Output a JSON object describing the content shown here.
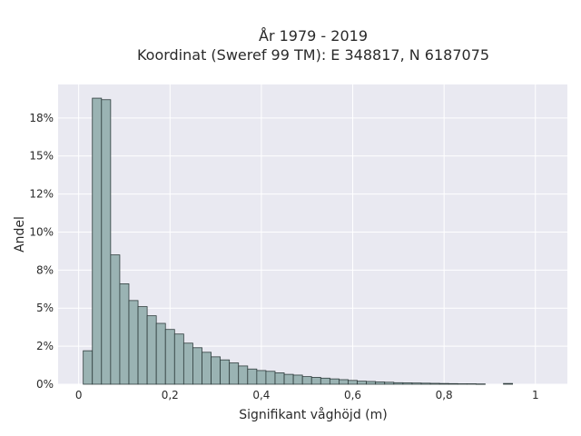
{
  "chart_data": {
    "type": "bar",
    "title_line1": "År 1979 - 2019",
    "title_line2": "Koordinat (Sweref 99 TM): E 348817, N 6187075",
    "xlabel": "Signifikant våghöjd (m)",
    "ylabel": "Andel",
    "xlim": [
      -0.045,
      1.07
    ],
    "ylim": [
      0,
      0.197
    ],
    "x_ticks": [
      {
        "value": 0,
        "label": "0"
      },
      {
        "value": 0.2,
        "label": "0,2"
      },
      {
        "value": 0.4,
        "label": "0,4"
      },
      {
        "value": 0.6,
        "label": "0,6"
      },
      {
        "value": 0.8,
        "label": "0,8"
      },
      {
        "value": 1.0,
        "label": "1"
      }
    ],
    "y_ticks": [
      {
        "value": 0,
        "label": "0%"
      },
      {
        "value": 0.025,
        "label": "2%"
      },
      {
        "value": 0.05,
        "label": "5%"
      },
      {
        "value": 0.075,
        "label": "8%"
      },
      {
        "value": 0.1,
        "label": "10%"
      },
      {
        "value": 0.125,
        "label": "12%"
      },
      {
        "value": 0.15,
        "label": "15%"
      },
      {
        "value": 0.175,
        "label": "18%"
      }
    ],
    "bin_width": 0.02,
    "bins_start": [
      0.01,
      0.03,
      0.05,
      0.07,
      0.09,
      0.11,
      0.13,
      0.15,
      0.17,
      0.19,
      0.21,
      0.23,
      0.25,
      0.27,
      0.29,
      0.31,
      0.33,
      0.35,
      0.37,
      0.39,
      0.41,
      0.43,
      0.45,
      0.47,
      0.49,
      0.51,
      0.53,
      0.55,
      0.57,
      0.59,
      0.61,
      0.63,
      0.65,
      0.67,
      0.69,
      0.71,
      0.73,
      0.75,
      0.77,
      0.79,
      0.81,
      0.83,
      0.85,
      0.87,
      0.89,
      0.91,
      0.93,
      0.95,
      0.97
    ],
    "values": [
      0.022,
      0.188,
      0.187,
      0.085,
      0.066,
      0.055,
      0.051,
      0.045,
      0.04,
      0.036,
      0.033,
      0.027,
      0.024,
      0.021,
      0.018,
      0.016,
      0.014,
      0.012,
      0.01,
      0.009,
      0.0085,
      0.0075,
      0.0065,
      0.006,
      0.005,
      0.0045,
      0.004,
      0.0035,
      0.003,
      0.0025,
      0.002,
      0.0018,
      0.0015,
      0.0013,
      0.001,
      0.0009,
      0.0008,
      0.0007,
      0.0006,
      0.0005,
      0.0004,
      0.0003,
      0.0003,
      0.0002,
      0.0,
      0.0,
      0.0005,
      0.0,
      0.0
    ],
    "bar_color": "#9ab3b3",
    "bar_edge_color": "#2f3d3d",
    "plot_background": "#e9e9f1",
    "grid_color": "#ffffff",
    "grid": true
  }
}
